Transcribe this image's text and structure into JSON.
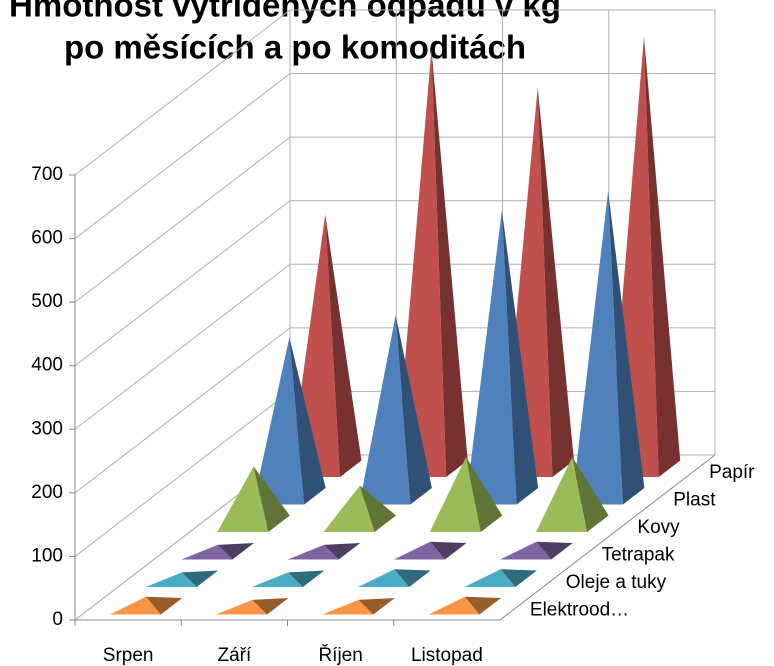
{
  "chart_data": {
    "type": "pyramid3d",
    "title_lines": [
      "Hmotnost vytříděných odpadů v kg",
      "po měsících a po komoditách"
    ],
    "categories": [
      "Srpen",
      "Září",
      "Říjen",
      "Listopad"
    ],
    "series": [
      {
        "name": "Papír",
        "color": "#c0504d",
        "values": [
          400,
          660,
          600,
          680
        ]
      },
      {
        "name": "Plast",
        "color": "#4f81bd",
        "values": [
          250,
          285,
          450,
          480
        ]
      },
      {
        "name": "Kovy",
        "color": "#9bbb59",
        "values": [
          90,
          60,
          105,
          105
        ]
      },
      {
        "name": "Tetrapak",
        "color": "#8064a2",
        "values": [
          10,
          10,
          15,
          15
        ]
      },
      {
        "name": "Oleje a tuky",
        "color": "#4bacc6",
        "values": [
          10,
          10,
          15,
          15
        ]
      },
      {
        "name": "Elektrood…",
        "color": "#f79646",
        "values": [
          15,
          10,
          10,
          15
        ]
      }
    ],
    "ylim": [
      0,
      700
    ],
    "yticks": [
      0,
      100,
      200,
      300,
      400,
      500,
      600,
      700
    ],
    "grid": true
  }
}
